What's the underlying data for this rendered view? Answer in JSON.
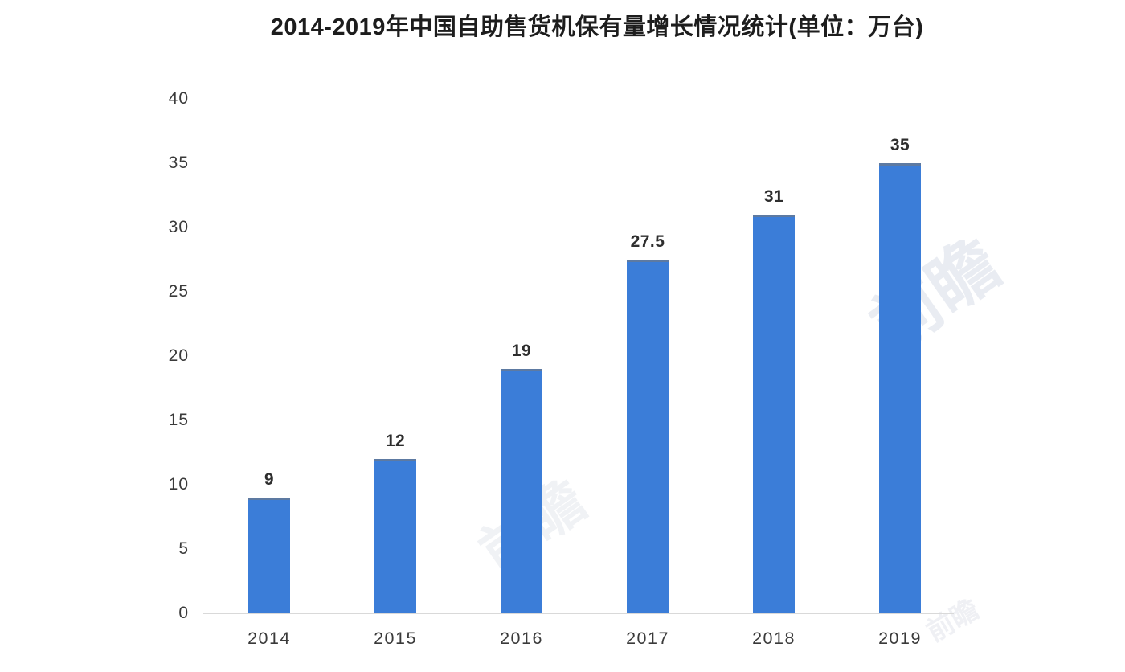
{
  "chart_data": {
    "type": "bar",
    "title": "2014-2019年中国自助售货机保有量增长情况统计(单位：万台)",
    "categories": [
      "2014",
      "2015",
      "2016",
      "2017",
      "2018",
      "2019"
    ],
    "values": [
      9,
      12,
      19,
      27.5,
      31,
      35
    ],
    "data_labels": [
      "9",
      "12",
      "19",
      "27.5",
      "31",
      "35"
    ],
    "xlabel": "",
    "ylabel": "",
    "ylim": [
      0,
      40
    ],
    "yticks": [
      0,
      5,
      10,
      15,
      20,
      25,
      30,
      35,
      40
    ],
    "grid": false,
    "legend_position": "none",
    "bar_color": "#3b7dd8",
    "bar_top_edge_color": "#5d7aa2",
    "axis_line_color": "#d9d9d9",
    "title_color": "#1d1d1d",
    "tick_label_color": "#3a3a3a",
    "value_label_color": "#2e2e2e",
    "background_color": "#ffffff"
  },
  "watermark": {
    "text": "前瞻",
    "text_small": "前瞻"
  }
}
